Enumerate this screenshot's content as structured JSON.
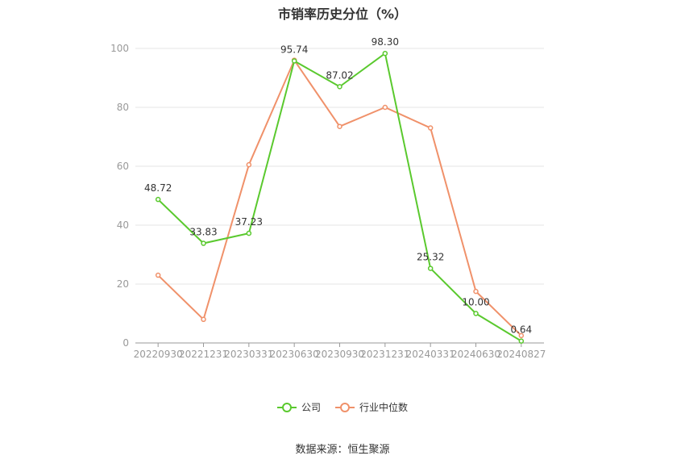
{
  "chart_data": {
    "type": "line",
    "title": "市销率历史分位（%）",
    "xlabel": "",
    "ylabel": "",
    "ylim": [
      0,
      100
    ],
    "yticks": [
      0,
      20,
      40,
      60,
      80,
      100
    ],
    "grid": true,
    "legend_position": "bottom",
    "categories": [
      "20220930",
      "20221231",
      "20230331",
      "20230630",
      "20230930",
      "20231231",
      "20240331",
      "20240630",
      "20240827"
    ],
    "series": [
      {
        "name": "公司",
        "color": "#5ac92e",
        "values": [
          48.72,
          33.83,
          37.23,
          95.74,
          87.02,
          98.3,
          25.32,
          10.0,
          0.64
        ],
        "labels": [
          "48.72",
          "33.83",
          "37.23",
          "95.74",
          "87.02",
          "98.30",
          "25.32",
          "10.00",
          "0.64"
        ]
      },
      {
        "name": "行业中位数",
        "color": "#f0916a",
        "values": [
          23,
          8,
          60.5,
          96,
          73.5,
          80,
          73,
          17.5,
          2.5
        ]
      }
    ]
  },
  "source": "数据来源：恒生聚源"
}
